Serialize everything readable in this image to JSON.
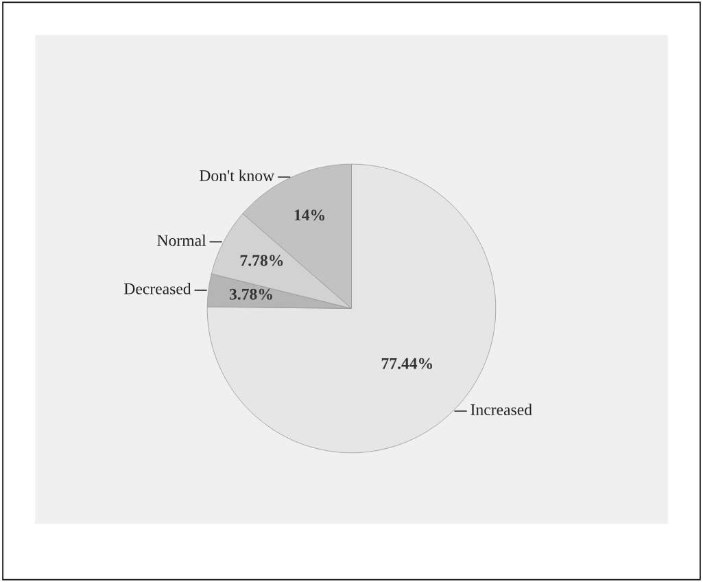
{
  "chart_data": {
    "type": "pie",
    "categories": [
      "Increased",
      "Decreased",
      "Normal",
      "Don't know"
    ],
    "values": [
      77.44,
      3.78,
      7.78,
      14
    ],
    "value_labels": [
      "77.44%",
      "3.78%",
      "7.78%",
      "14%"
    ],
    "colors": [
      "#e6e6e6",
      "#b5b5b5",
      "#d2d2d2",
      "#c2c2c2"
    ]
  }
}
